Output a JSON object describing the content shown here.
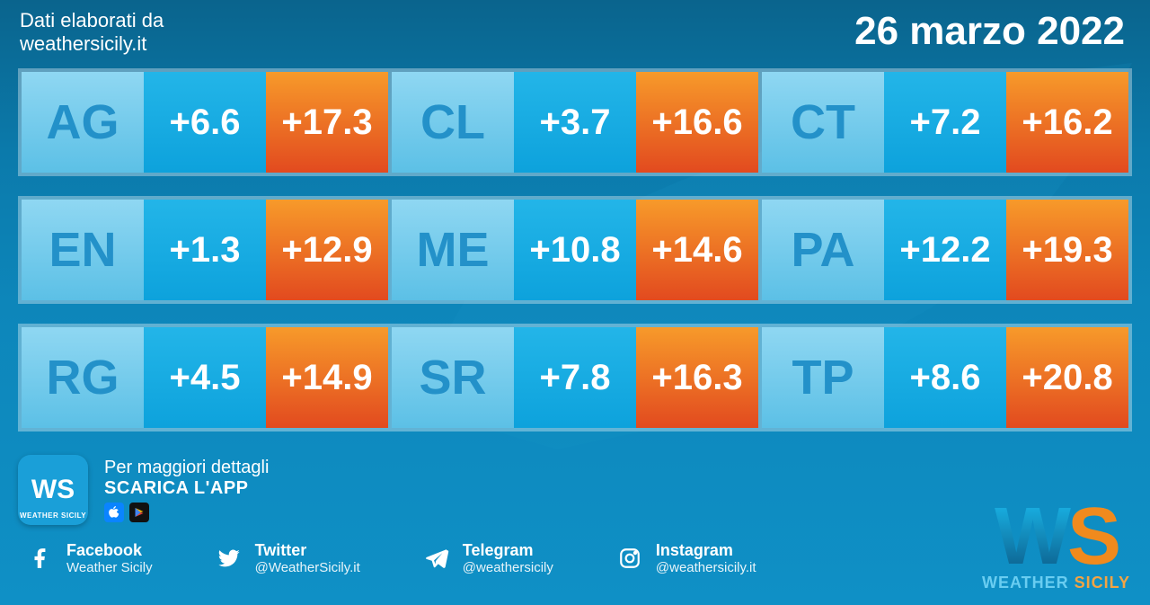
{
  "header": {
    "source_line1": "Dati elaborati da",
    "source_line2": "weathersicily.it",
    "date": "26 marzo 2022"
  },
  "palette": {
    "code_text": "#2391c9",
    "code_bg_gradient_top": "#8fd7f2",
    "code_bg_gradient_bottom": "#5cc0e6",
    "low_bg_top": "#23b5e8",
    "low_bg_bottom": "#0da2dc",
    "low_text": "#ffffff",
    "high_bg_top": "#f79a2a",
    "high_bg_bottom": "#e24a1f",
    "high_text": "#ffffff",
    "row_border": "rgba(255,255,255,0.35)"
  },
  "table": {
    "type": "infographic-table",
    "rows": 3,
    "cols_per_row": 3,
    "provinces": [
      [
        {
          "code": "AG",
          "low": "+6.6",
          "high": "+17.3"
        },
        {
          "code": "CL",
          "low": "+3.7",
          "high": "+16.6"
        },
        {
          "code": "CT",
          "low": "+7.2",
          "high": "+16.2"
        }
      ],
      [
        {
          "code": "EN",
          "low": "+1.3",
          "high": "+12.9"
        },
        {
          "code": "ME",
          "low": "+10.8",
          "high": "+14.6"
        },
        {
          "code": "PA",
          "low": "+12.2",
          "high": "+19.3"
        }
      ],
      [
        {
          "code": "RG",
          "low": "+4.5",
          "high": "+14.9"
        },
        {
          "code": "SR",
          "low": "+7.8",
          "high": "+16.3"
        },
        {
          "code": "TP",
          "low": "+8.6",
          "high": "+20.8"
        }
      ]
    ]
  },
  "app_banner": {
    "icon_text": "WS",
    "icon_sub": "WEATHER SICILY",
    "line1": "Per maggiori dettagli",
    "line2": "SCARICA L'APP",
    "stores": {
      "apple": "app-store",
      "play": "play-store"
    }
  },
  "socials": [
    {
      "platform": "Facebook",
      "handle": "Weather Sicily",
      "icon": "facebook-icon"
    },
    {
      "platform": "Twitter",
      "handle": "@WeatherSicily.it",
      "icon": "twitter-icon"
    },
    {
      "platform": "Telegram",
      "handle": "@weathersicily",
      "icon": "telegram-icon"
    },
    {
      "platform": "Instagram",
      "handle": "@weathersicily.it",
      "icon": "instagram-icon"
    }
  ],
  "logo": {
    "big_w": "W",
    "big_s": "S",
    "label_w": "WEATHER ",
    "label_s": "SICILY"
  }
}
